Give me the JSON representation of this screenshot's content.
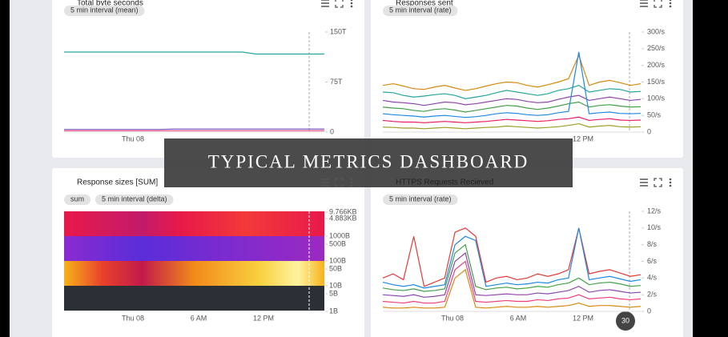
{
  "panels": [
    {
      "title": "Total byte seconds",
      "chips": [
        "5 min interval (mean)"
      ],
      "ylim": [
        0,
        150
      ],
      "yticks": [
        {
          "value": 150,
          "label": "150T"
        },
        {
          "value": 75,
          "label": "75T"
        },
        0
      ],
      "xticks": [
        "Thu 08"
      ],
      "series": [
        {
          "color": "#26a69a",
          "values": [
            120,
            120,
            120,
            120,
            120,
            120,
            120,
            120,
            120,
            120,
            120,
            120,
            120,
            120,
            117,
            117,
            117,
            117,
            117,
            117
          ]
        },
        {
          "color": "#7e57c2",
          "values": [
            4,
            4,
            4,
            4,
            4,
            4,
            4,
            4,
            4.5,
            4.5,
            4.5,
            4.5,
            4.5,
            4.5,
            4.5,
            4.5,
            4.5,
            4.5,
            4.5,
            4.5
          ]
        },
        {
          "color": "#ec407a",
          "values": [
            2,
            2,
            2,
            2,
            2,
            2,
            2,
            2,
            2,
            2,
            2,
            2,
            2,
            2,
            2,
            2,
            2,
            2,
            2,
            2
          ]
        }
      ]
    },
    {
      "title": "Responses sent",
      "chips": [
        "5 min interval (rate)"
      ],
      "ylim": [
        0,
        300
      ],
      "yticks": [
        {
          "value": 300,
          "label": "300/s"
        },
        {
          "value": 250,
          "label": "250/s"
        },
        {
          "value": 200,
          "label": "200/s"
        },
        {
          "value": 150,
          "label": "150/s"
        },
        {
          "value": 100,
          "label": "100/s"
        },
        {
          "value": 50,
          "label": "50/s"
        },
        0
      ],
      "xticks": [
        "12 PM"
      ],
      "series": [
        {
          "color": "#d68910",
          "values": [
            140,
            145,
            138,
            130,
            128,
            135,
            140,
            132,
            125,
            130,
            138,
            145,
            150,
            148,
            140,
            135,
            142,
            150,
            160,
            230,
            140,
            150,
            155,
            148,
            140,
            145
          ]
        },
        {
          "color": "#26a69a",
          "values": [
            120,
            118,
            110,
            105,
            108,
            112,
            115,
            110,
            100,
            105,
            110,
            118,
            125,
            120,
            115,
            110,
            115,
            125,
            130,
            140,
            120,
            125,
            130,
            128,
            120,
            122
          ]
        },
        {
          "color": "#8e44ad",
          "values": [
            95,
            90,
            88,
            85,
            80,
            85,
            90,
            88,
            82,
            85,
            90,
            95,
            100,
            98,
            92,
            88,
            90,
            98,
            105,
            110,
            95,
            100,
            105,
            100,
            95,
            98
          ]
        },
        {
          "color": "#43a047",
          "values": [
            75,
            72,
            70,
            65,
            62,
            68,
            70,
            66,
            60,
            65,
            70,
            75,
            80,
            78,
            72,
            68,
            72,
            78,
            85,
            90,
            75,
            80,
            82,
            78,
            75,
            76
          ]
        },
        {
          "color": "#1e88e5",
          "values": [
            55,
            52,
            50,
            48,
            45,
            48,
            50,
            47,
            44,
            46,
            50,
            55,
            58,
            56,
            52,
            50,
            52,
            58,
            62,
            240,
            55,
            58,
            60,
            56,
            55,
            56
          ]
        },
        {
          "color": "#e91e63",
          "values": [
            35,
            32,
            30,
            30,
            28,
            30,
            32,
            30,
            28,
            30,
            32,
            35,
            38,
            36,
            34,
            32,
            34,
            38,
            40,
            45,
            35,
            38,
            40,
            36,
            35,
            36
          ]
        },
        {
          "color": "#9e9d24",
          "values": [
            15,
            14,
            12,
            12,
            10,
            12,
            14,
            12,
            10,
            12,
            14,
            15,
            18,
            16,
            14,
            12,
            14,
            16,
            20,
            25,
            15,
            18,
            20,
            16,
            15,
            16
          ]
        }
      ]
    },
    {
      "title": "Response sizes [SUM]",
      "chips": [
        "sum",
        "5 min interval (delta)"
      ],
      "yticks": [
        {
          "value": 9766,
          "label": "9.766KB"
        },
        {
          "value": 4883,
          "label": "4.883KB"
        },
        {
          "value": 1000,
          "label": "1000B"
        },
        {
          "value": 500,
          "label": "500B"
        },
        {
          "value": 100,
          "label": "100B"
        },
        {
          "value": 50,
          "label": "50B"
        },
        {
          "value": 10,
          "label": "10B"
        },
        {
          "value": 5,
          "label": "5B"
        },
        {
          "value": 1,
          "label": "1B"
        }
      ],
      "xticks": [
        "Thu 08",
        "6 AM",
        "12 PM"
      ]
    },
    {
      "title": "HTTPS Requests Recieved",
      "chips": [
        "5 min interval (rate)"
      ],
      "ylim": [
        0,
        12
      ],
      "yticks": [
        {
          "value": 12,
          "label": "12/s"
        },
        {
          "value": 10,
          "label": "10/s"
        },
        {
          "value": 8,
          "label": "8/s"
        },
        {
          "value": 6,
          "label": "6/s"
        },
        {
          "value": 4,
          "label": "4/s"
        },
        {
          "value": 2,
          "label": "2/s"
        },
        0
      ],
      "xticks": [
        "Thu 08",
        "6 AM",
        "12 PM"
      ],
      "series": [
        {
          "color": "#e53935",
          "values": [
            4,
            4.5,
            3.8,
            9,
            3,
            3.5,
            4,
            9.5,
            10,
            9,
            3.5,
            4,
            4.2,
            3.8,
            4,
            4.5,
            4.2,
            4.5,
            5,
            10,
            4.5,
            4.8,
            5,
            4.6,
            4.2,
            4.4
          ]
        },
        {
          "color": "#1e88e5",
          "values": [
            3.5,
            3.2,
            3,
            3.2,
            2.8,
            3,
            3.2,
            8,
            9,
            8.5,
            3,
            3.2,
            3.4,
            3.2,
            3.3,
            3.5,
            3.4,
            3.8,
            4,
            10,
            3.8,
            4,
            4.2,
            3.9,
            3.6,
            3.8
          ]
        },
        {
          "color": "#43a047",
          "values": [
            2.8,
            2.6,
            2.5,
            2.7,
            2.4,
            2.5,
            2.7,
            7,
            8,
            3,
            2.6,
            2.8,
            2.9,
            2.7,
            2.8,
            3,
            2.9,
            3.2,
            3.4,
            4,
            3.2,
            3.4,
            3.5,
            3.3,
            3,
            3.1
          ]
        },
        {
          "color": "#8e44ad",
          "values": [
            2,
            1.9,
            1.8,
            2,
            1.7,
            1.8,
            2,
            6,
            7,
            2,
            1.9,
            2,
            2.1,
            2,
            2,
            2.2,
            2.1,
            2.3,
            2.5,
            3,
            2.3,
            2.5,
            2.6,
            2.4,
            2.2,
            2.3
          ]
        },
        {
          "color": "#ec407a",
          "values": [
            1.2,
            1.1,
            1,
            1.2,
            1,
            1,
            1.2,
            5,
            6,
            1.2,
            1.1,
            1.2,
            1.3,
            1.2,
            1.2,
            1.4,
            1.3,
            1.5,
            1.6,
            2,
            1.5,
            1.6,
            1.7,
            1.5,
            1.4,
            1.5
          ]
        },
        {
          "color": "#d68910",
          "values": [
            0.5,
            0.4,
            0.4,
            0.5,
            0.4,
            0.4,
            0.5,
            4,
            5,
            0.5,
            0.4,
            0.5,
            0.6,
            0.5,
            0.5,
            0.6,
            0.5,
            0.6,
            0.7,
            1,
            0.6,
            0.7,
            0.7,
            0.6,
            0.5,
            0.6
          ]
        }
      ]
    }
  ],
  "banner": "TYPICAL METRICS DASHBOARD",
  "badge": "30"
}
